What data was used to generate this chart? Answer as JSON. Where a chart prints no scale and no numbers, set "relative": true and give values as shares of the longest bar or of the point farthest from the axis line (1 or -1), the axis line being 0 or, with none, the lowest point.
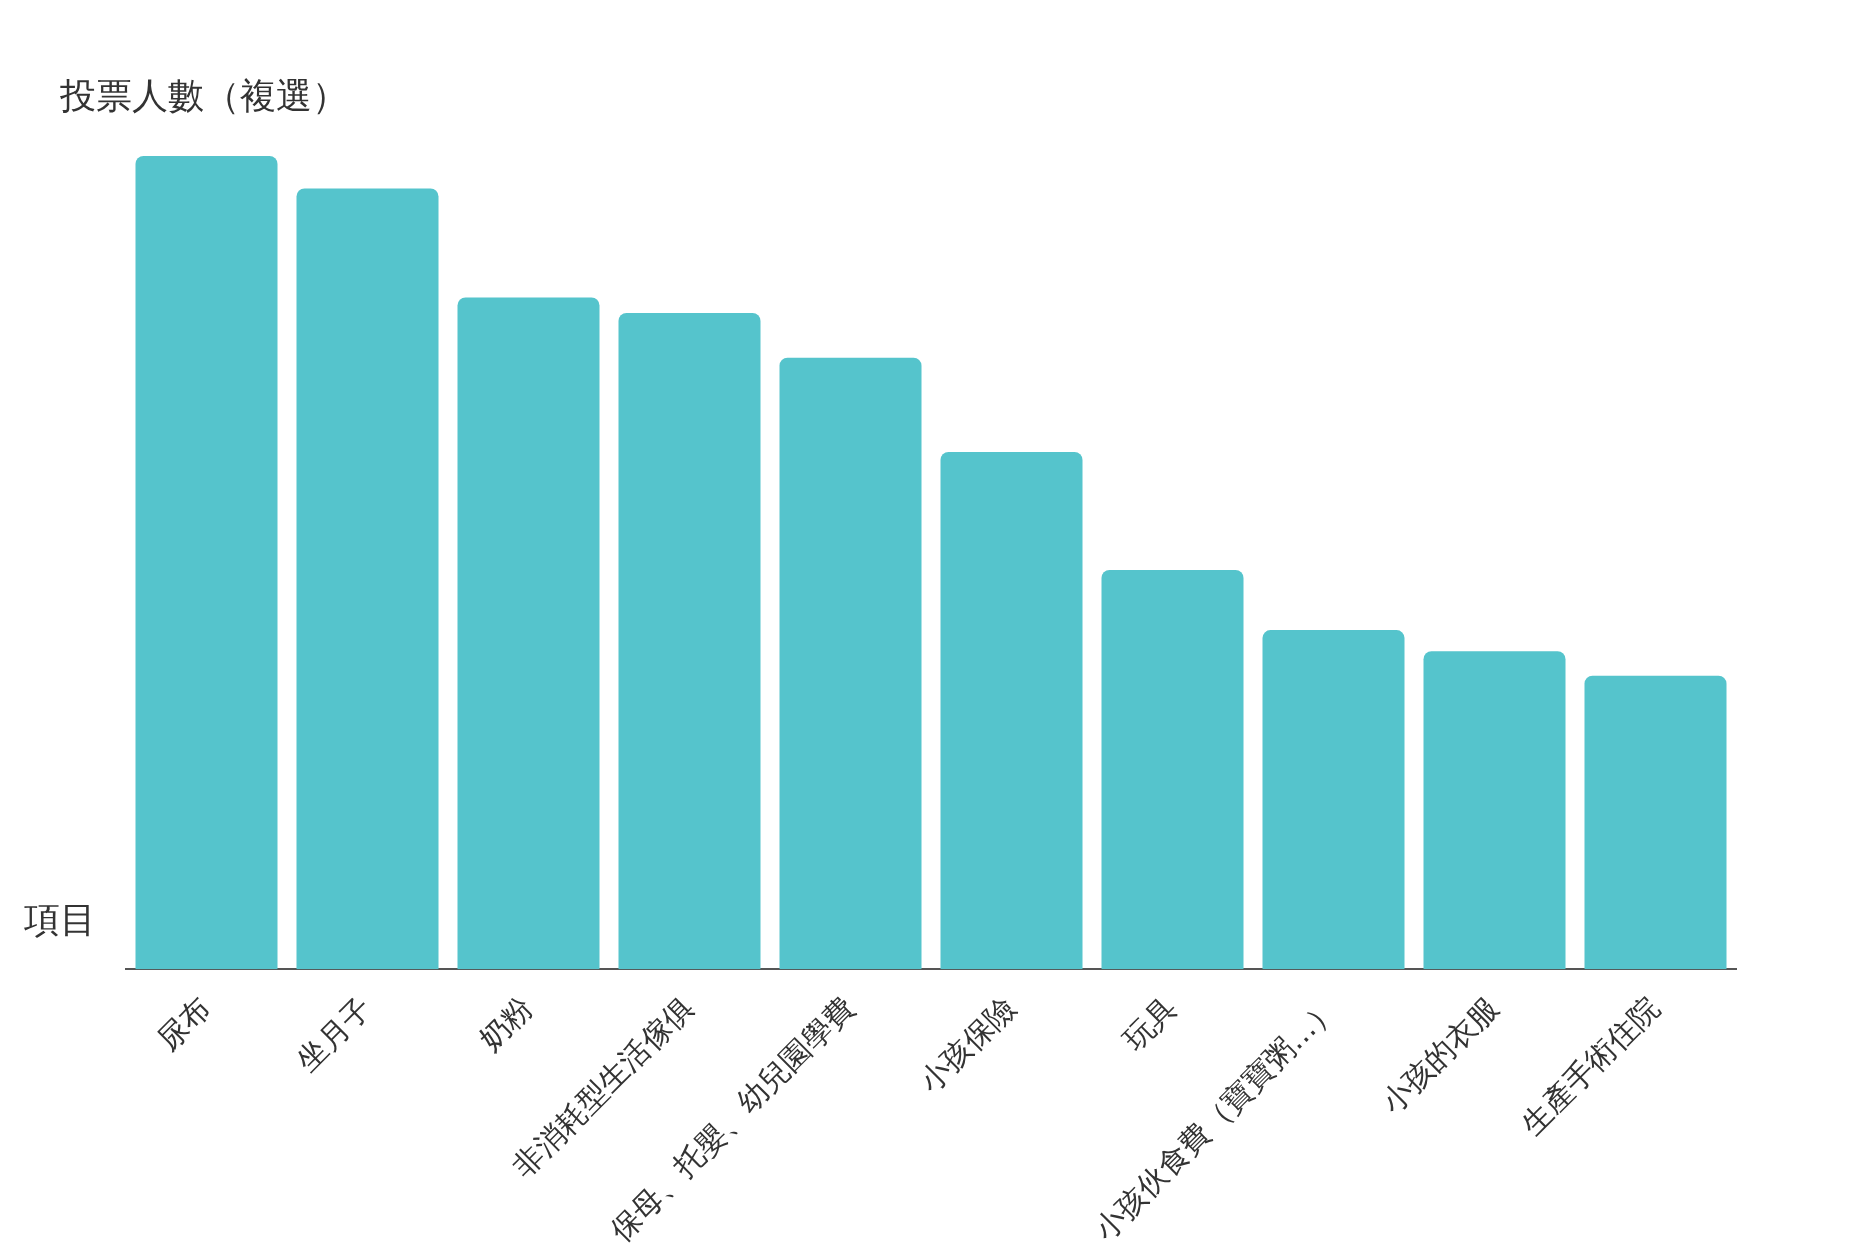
{
  "chart_data": {
    "type": "bar",
    "relative": true,
    "ylabel": "投票人數（複選）",
    "xlabel": "項目",
    "color": "#55c4cc",
    "categories": [
      "尿布",
      "坐月子",
      "奶粉",
      "非消耗型生活傢俱",
      "保母、托嬰、幼兒園學費",
      "小孩保險",
      "玩具",
      "小孩伙食費（寶寶粥...）",
      "小孩的衣服",
      "生產手術住院"
    ],
    "values": [
      1,
      0.96,
      0.826,
      0.807,
      0.752,
      0.636,
      0.491,
      0.417,
      0.391,
      0.361
    ]
  }
}
